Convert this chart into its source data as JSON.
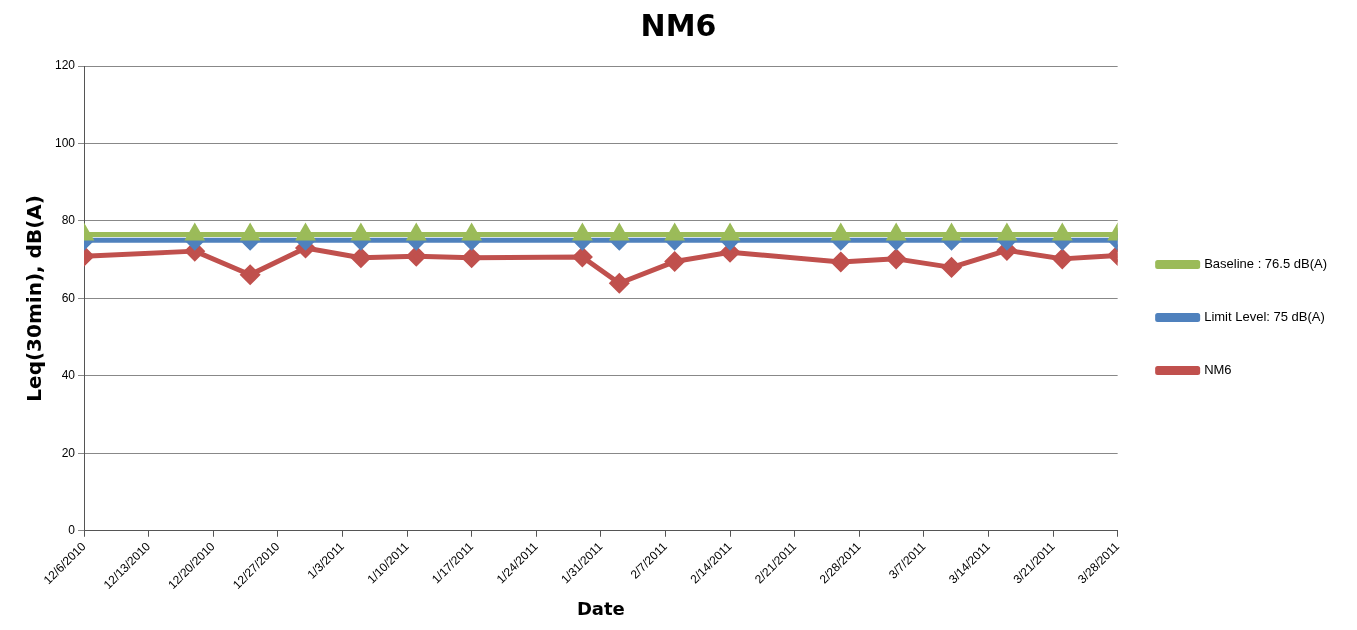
{
  "chart_data": {
    "type": "line",
    "title": "NM6",
    "xlabel": "Date",
    "ylabel": "Leq(30min), dB(A)",
    "x": [
      "2010-12-06",
      "2010-12-18",
      "2010-12-24",
      "2010-12-30",
      "2011-01-05",
      "2011-01-11",
      "2011-01-17",
      "2011-01-29",
      "2011-02-02",
      "2011-02-08",
      "2011-02-14",
      "2011-02-26",
      "2011-03-04",
      "2011-03-10",
      "2011-03-16",
      "2011-03-22",
      "2011-03-28"
    ],
    "series": [
      {
        "name": "NM6",
        "color": "#c0504d",
        "marker": "diamond",
        "values": [
          70.9,
          72.2,
          66.1,
          73,
          70.5,
          70.9,
          70.5,
          70.7,
          63.9,
          69.5,
          71.9,
          69.4,
          70.2,
          68,
          72.4,
          70.2,
          71.1
        ]
      },
      {
        "name": "Limit Level: 75 dB(A)",
        "color": "#4f81bd",
        "marker": "diamond",
        "values": [
          75,
          75,
          75,
          75,
          75,
          75,
          75,
          75,
          75,
          75,
          75,
          75,
          75,
          75,
          75,
          75,
          75
        ]
      },
      {
        "name": "Baseline : 76.5 dB(A)",
        "color": "#9bbb59",
        "marker": "triangle",
        "values": [
          76.5,
          76.5,
          76.5,
          76.5,
          76.5,
          76.5,
          76.5,
          76.5,
          76.5,
          76.5,
          76.5,
          76.5,
          76.5,
          76.5,
          76.5,
          76.5,
          76.5
        ]
      }
    ],
    "xlim": [
      "2010-12-06",
      "2011-03-28"
    ],
    "xticks": [
      {
        "value": "2010-12-06",
        "label": "12/6/2010"
      },
      {
        "value": "2010-12-13",
        "label": "12/13/2010"
      },
      {
        "value": "2010-12-20",
        "label": "12/20/2010"
      },
      {
        "value": "2010-12-27",
        "label": "12/27/2010"
      },
      {
        "value": "2011-01-03",
        "label": "1/3/2011"
      },
      {
        "value": "2011-01-10",
        "label": "1/10/2011"
      },
      {
        "value": "2011-01-17",
        "label": "1/17/2011"
      },
      {
        "value": "2011-01-24",
        "label": "1/24/2011"
      },
      {
        "value": "2011-01-31",
        "label": "1/31/2011"
      },
      {
        "value": "2011-02-07",
        "label": "2/7/2011"
      },
      {
        "value": "2011-02-14",
        "label": "2/14/2011"
      },
      {
        "value": "2011-02-21",
        "label": "2/21/2011"
      },
      {
        "value": "2011-02-28",
        "label": "2/28/2011"
      },
      {
        "value": "2011-03-07",
        "label": "3/7/2011"
      },
      {
        "value": "2011-03-14",
        "label": "3/14/2011"
      },
      {
        "value": "2011-03-21",
        "label": "3/21/2011"
      },
      {
        "value": "2011-03-28",
        "label": "3/28/2011"
      }
    ],
    "ylim": [
      0,
      120
    ],
    "yticks": [
      0,
      20,
      40,
      60,
      80,
      100,
      120
    ],
    "grid": "y",
    "legend": "right",
    "line_style": "solid"
  }
}
